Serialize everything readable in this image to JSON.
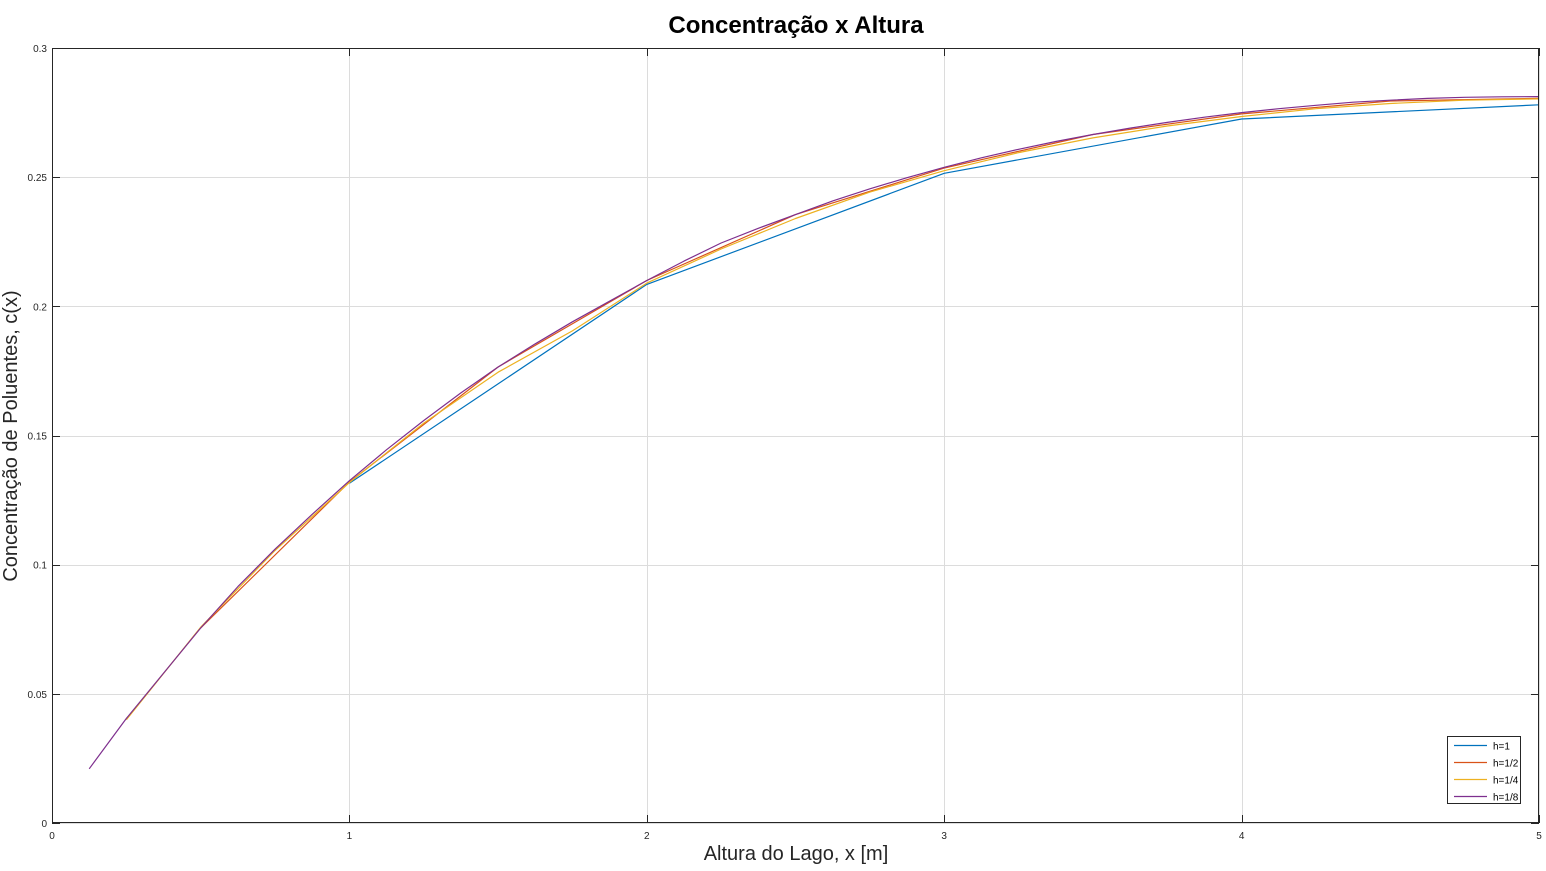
{
  "chart_data": {
    "type": "line",
    "title": "Concentração x Altura",
    "xlabel": "Altura do Lago, x [m]",
    "ylabel": "Concentração de Poluentes, c(x)",
    "xlim": [
      0,
      5
    ],
    "ylim": [
      0,
      0.3
    ],
    "xticks": [
      "0",
      "1",
      "2",
      "3",
      "4",
      "5"
    ],
    "yticks": [
      "0",
      "0.05",
      "0.1",
      "0.15",
      "0.2",
      "0.25",
      "0.3"
    ],
    "grid": true,
    "legend_position": "bottom-right",
    "series": [
      {
        "name": "h=1",
        "color": "#0072bd",
        "x": [
          1,
          2,
          3,
          4,
          5
        ],
        "y": [
          0.1315,
          0.2085,
          0.2515,
          0.2725,
          0.278
        ]
      },
      {
        "name": "h=1/2",
        "color": "#d95319",
        "x": [
          0.5,
          1,
          1.5,
          2,
          2.5,
          3,
          3.5,
          4,
          4.5,
          5
        ],
        "y": [
          0.0755,
          0.132,
          0.1765,
          0.21,
          0.2355,
          0.2535,
          0.2665,
          0.2745,
          0.2795,
          0.2805
        ]
      },
      {
        "name": "h=1/4",
        "color": "#edb120",
        "x": [
          0.25,
          0.5,
          0.75,
          1,
          1.25,
          1.5,
          1.75,
          2,
          2.25,
          2.5,
          2.75,
          3,
          3.25,
          3.5,
          3.75,
          4,
          4.25,
          4.5,
          4.75,
          5
        ],
        "y": [
          0.04,
          0.0758,
          0.1055,
          0.1318,
          0.1548,
          0.1745,
          0.1905,
          0.209,
          0.2222,
          0.234,
          0.2442,
          0.2525,
          0.2595,
          0.2652,
          0.2698,
          0.2735,
          0.2765,
          0.2785,
          0.2798,
          0.2803
        ]
      },
      {
        "name": "h=1/8",
        "color": "#7e2f8e",
        "x": [
          0.125,
          0.25,
          0.375,
          0.5,
          0.625,
          0.75,
          0.875,
          1,
          1.125,
          1.25,
          1.375,
          1.5,
          1.625,
          1.75,
          1.875,
          2,
          2.125,
          2.25,
          2.375,
          2.5,
          2.625,
          2.75,
          2.875,
          3,
          3.125,
          3.25,
          3.375,
          3.5,
          3.625,
          3.75,
          3.875,
          4,
          4.125,
          4.25,
          4.375,
          4.5,
          4.625,
          4.75,
          4.875,
          5
        ],
        "y": [
          0.021,
          0.0405,
          0.058,
          0.0755,
          0.0915,
          0.106,
          0.1195,
          0.1325,
          0.1445,
          0.1558,
          0.1665,
          0.1765,
          0.1855,
          0.194,
          0.202,
          0.21,
          0.2175,
          0.2245,
          0.2302,
          0.2355,
          0.2408,
          0.2455,
          0.2498,
          0.2538,
          0.2575,
          0.2608,
          0.2638,
          0.2665,
          0.269,
          0.2712,
          0.2732,
          0.275,
          0.2765,
          0.2778,
          0.279,
          0.2798,
          0.2805,
          0.2809,
          0.2811,
          0.2812
        ]
      }
    ]
  }
}
